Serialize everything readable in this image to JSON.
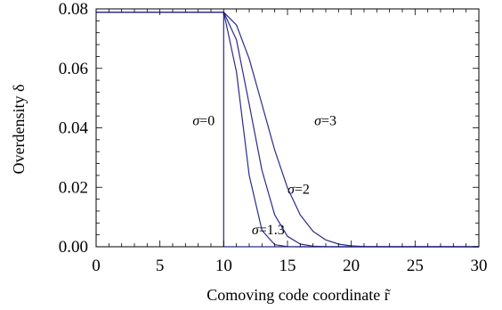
{
  "chart_data": {
    "type": "line",
    "xlabel": "Comoving code coordinate r̃",
    "ylabel": "Overdensity δ",
    "xlim": [
      0,
      30
    ],
    "ylim": [
      0,
      0.08
    ],
    "x_ticks": [
      "0",
      "5",
      "10",
      "15",
      "20",
      "25",
      "30"
    ],
    "y_ticks": [
      "0.00",
      "0.02",
      "0.04",
      "0.06",
      "0.08"
    ],
    "grid": false,
    "line_color": "#2b2b8a",
    "plateau": 0.0789,
    "edge": 10,
    "series": [
      {
        "sigma": 0,
        "label": "σ=0",
        "label_at": [
          9.3,
          0.0409
        ],
        "x": [
          0,
          10,
          10,
          30
        ],
        "y": [
          0.0789,
          0.0789,
          0.0,
          0.0
        ]
      },
      {
        "sigma": 1.3,
        "label": "σ=1.3",
        "label_at": [
          12.2,
          0.0042
        ],
        "x": [
          0,
          10,
          11,
          12,
          13,
          14,
          15,
          16,
          17,
          18,
          20,
          30
        ],
        "y": [
          0.0789,
          0.0789,
          0.0588,
          0.024,
          0.0055,
          0.0007,
          5e-05,
          0.0,
          0.0,
          0.0,
          0.0,
          0.0
        ]
      },
      {
        "sigma": 2,
        "label": "σ=2",
        "label_at": [
          15.0,
          0.0178
        ],
        "x": [
          0,
          10,
          11,
          12,
          13,
          14,
          15,
          16,
          17,
          18,
          19,
          20,
          22,
          30
        ],
        "y": [
          0.0789,
          0.0789,
          0.0696,
          0.0479,
          0.0257,
          0.0107,
          0.0035,
          0.0009,
          0.0002,
          3e-05,
          0.0,
          0.0,
          0.0,
          0.0
        ]
      },
      {
        "sigma": 3,
        "label": "σ=3",
        "label_at": [
          17.1,
          0.0409
        ],
        "x": [
          0,
          10,
          11,
          12,
          13,
          14,
          15,
          16,
          17,
          18,
          19,
          20,
          21,
          22,
          23,
          24,
          25,
          26,
          30
        ],
        "y": [
          0.0789,
          0.0789,
          0.0746,
          0.0632,
          0.0479,
          0.0325,
          0.0198,
          0.0107,
          0.0052,
          0.0023,
          0.0009,
          0.0003,
          0.0001,
          3e-05,
          0.0,
          0.0,
          0.0,
          0.0,
          0.0
        ]
      }
    ]
  }
}
